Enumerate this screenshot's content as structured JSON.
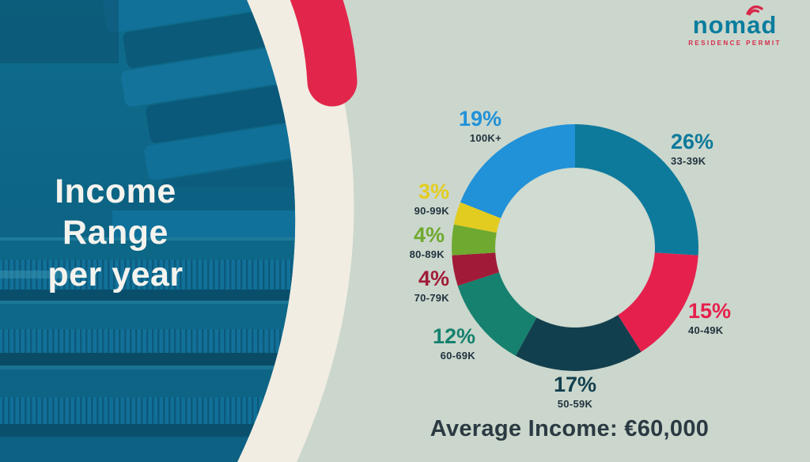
{
  "page": {
    "background_color": "#cbd7cc",
    "accent_red": "#e2264b",
    "panel_teal": "#0e6786",
    "band_cream": "#f1ede2"
  },
  "left_panel": {
    "title": "Income\nRange\nper year"
  },
  "logo": {
    "part1": "nom",
    "part2": "a",
    "part3": "d",
    "tagline": "RESIDENCE PERMIT",
    "brand_color": "#0a7d9e",
    "accent_color": "#d8294a"
  },
  "chart_data": {
    "type": "pie",
    "style": "donut",
    "title": "Income Range per year",
    "start_angle": "12 o'clock, clockwise",
    "legend_position": "around chart",
    "segments": [
      {
        "label": "33-39K",
        "pct": 26,
        "pct_label": "26%",
        "color": "#0d7a9c"
      },
      {
        "label": "40-49K",
        "pct": 15,
        "pct_label": "15%",
        "color": "#e6204d"
      },
      {
        "label": "50-59K",
        "pct": 17,
        "pct_label": "17%",
        "color": "#123f4e"
      },
      {
        "label": "60-69K",
        "pct": 12,
        "pct_label": "12%",
        "color": "#16816f"
      },
      {
        "label": "70-79K",
        "pct": 4,
        "pct_label": "4%",
        "color": "#a11b38"
      },
      {
        "label": "80-89K",
        "pct": 4,
        "pct_label": "4%",
        "color": "#6fa930"
      },
      {
        "label": "90-99K",
        "pct": 3,
        "pct_label": "3%",
        "color": "#e3cc20"
      },
      {
        "label": "100K+",
        "pct": 19,
        "pct_label": "19%",
        "color": "#2191d8"
      }
    ],
    "annotations": [
      "Average Income: €60,000"
    ]
  }
}
